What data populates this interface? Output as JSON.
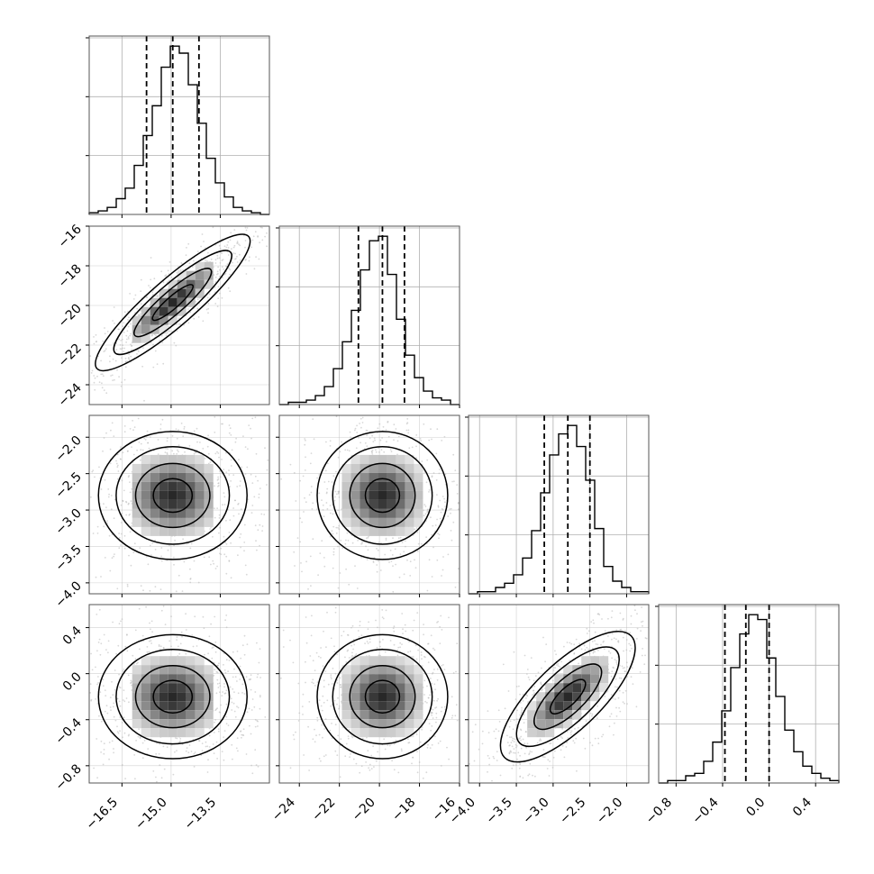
{
  "chart_data": {
    "type": "corner",
    "description_of_layout": "lower-triangular grid",
    "grid": true,
    "parameters": [
      {
        "range": [
          -17.5,
          -12.0
        ],
        "ticks": [
          -16.5,
          -15.0,
          -13.5
        ],
        "tick_labels": [
          "−16.5",
          "−15.0",
          "−13.5"
        ],
        "quantiles": [
          -15.75,
          -14.95,
          -14.15
        ]
      },
      {
        "range": [
          -25.0,
          -16.0
        ],
        "ticks": [
          -24,
          -22,
          -20,
          -18,
          -16
        ],
        "tick_labels": [
          "−24",
          "−22",
          "−20",
          "−18",
          "−16"
        ],
        "quantiles": [
          -21.05,
          -19.85,
          -18.75
        ]
      },
      {
        "range": [
          -4.15,
          -1.7
        ],
        "ticks": [
          -4.0,
          -3.5,
          -3.0,
          -2.5,
          -2.0
        ],
        "tick_labels": [
          "−4.0",
          "−3.5",
          "−3.0",
          "−2.5",
          "−2.0"
        ],
        "quantiles": [
          -3.12,
          -2.8,
          -2.5
        ]
      },
      {
        "range": [
          -0.95,
          0.6
        ],
        "ticks": [
          -0.8,
          -0.4,
          0.0,
          0.4
        ],
        "tick_labels": [
          "−0.8",
          "−0.4",
          "0.0",
          "0.4"
        ],
        "quantiles": [
          -0.38,
          -0.2,
          0.0
        ]
      }
    ],
    "histograms": [
      [
        1,
        2,
        4,
        9,
        15,
        28,
        45,
        62,
        84,
        96,
        92,
        74,
        52,
        32,
        18,
        10,
        4,
        2,
        1,
        0
      ],
      [
        0,
        1,
        1,
        2,
        4,
        8,
        16,
        28,
        42,
        60,
        73,
        75,
        58,
        38,
        22,
        12,
        6,
        3,
        2,
        0
      ],
      [
        0,
        1,
        1,
        3,
        5,
        9,
        17,
        30,
        48,
        66,
        76,
        80,
        70,
        54,
        31,
        13,
        6,
        3,
        1,
        1
      ],
      [
        0,
        1,
        1,
        3,
        4,
        9,
        17,
        30,
        48,
        62,
        70,
        68,
        52,
        36,
        22,
        13,
        7,
        4,
        2,
        1
      ]
    ],
    "correlations": {
      "1-0": 0.9,
      "2-0": 0.0,
      "2-1": 0.0,
      "3-0": 0.0,
      "3-1": 0.0,
      "3-2": 0.75
    }
  },
  "colors": {
    "line": "#000000",
    "grid": "#b0b0b0",
    "points": "#b8b8b8"
  }
}
